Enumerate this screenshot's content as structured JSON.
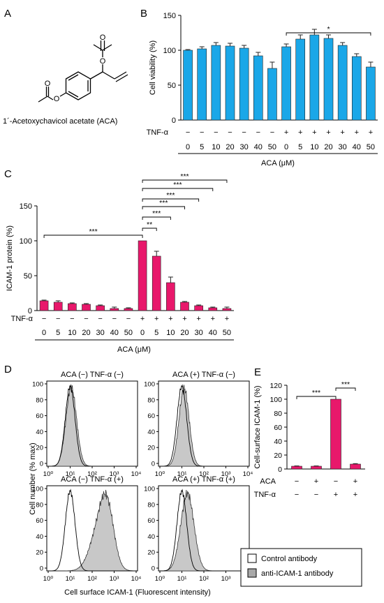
{
  "panels": {
    "a": {
      "letter": "A",
      "compound_label": "1´-Acetoxychavicol acetate (ACA)"
    },
    "b": {
      "letter": "B"
    },
    "c": {
      "letter": "C"
    },
    "d": {
      "letter": "D",
      "ylabel": "Cell number (% max)",
      "xlabel": "Cell surface ICAM-1 (Fluorescent intensity)",
      "subplot_titles": [
        "ACA (−) TNF-α (−)",
        "ACA (+) TNF-α (−)",
        "ACA (−) TNF-α (+)",
        "ACA (+) TNF-α (+)"
      ],
      "y_ticks": [
        "100",
        "80",
        "60",
        "40",
        "20",
        "0"
      ],
      "x_ticks": [
        "10⁰",
        "10¹",
        "10²",
        "10³",
        "10⁴"
      ],
      "legend": [
        "Control antibody",
        "anti-ICAM-1 antibody"
      ]
    },
    "e": {
      "letter": "E"
    }
  },
  "colors": {
    "blue_bar": "#1aa7e8",
    "magenta_bar": "#e8186b",
    "histogram_fill": "#c8c8c8"
  },
  "chart_data": [
    {
      "panel": "B",
      "type": "bar",
      "ylabel": "Cell viability (%)",
      "ylim": [
        0,
        150
      ],
      "yticks": [
        "0",
        "50",
        "100",
        "150"
      ],
      "categories": [
        "0",
        "5",
        "10",
        "20",
        "30",
        "40",
        "50",
        "0",
        "5",
        "10",
        "20",
        "30",
        "40",
        "50"
      ],
      "tnf": [
        "−",
        "−",
        "−",
        "−",
        "−",
        "−",
        "−",
        "+",
        "+",
        "+",
        "+",
        "+",
        "+",
        "+"
      ],
      "tnf_label": "TNF-α",
      "xlabel": "ACA (μM)",
      "values": [
        100,
        102,
        107,
        106,
        103,
        92,
        74,
        105,
        116,
        122,
        117,
        107,
        91,
        76
      ],
      "errors": [
        1,
        3,
        4,
        4,
        4,
        5,
        9,
        4,
        6,
        8,
        5,
        4,
        4,
        7
      ],
      "significance": [
        {
          "label": "*",
          "from": 7,
          "to": 13
        }
      ]
    },
    {
      "panel": "C",
      "type": "bar",
      "ylabel": "ICAM-1 protein (%)",
      "ylim": [
        0,
        150
      ],
      "yticks": [
        "0",
        "50",
        "100",
        "150"
      ],
      "categories": [
        "0",
        "5",
        "10",
        "20",
        "30",
        "40",
        "50",
        "0",
        "5",
        "10",
        "20",
        "30",
        "40",
        "50"
      ],
      "tnf": [
        "−",
        "−",
        "−",
        "−",
        "−",
        "−",
        "−",
        "+",
        "+",
        "+",
        "+",
        "+",
        "+",
        "+"
      ],
      "tnf_label": "TNF-α",
      "xlabel": "ACA (μM)",
      "values": [
        14,
        12,
        10,
        9,
        7,
        3,
        3,
        100,
        78,
        40,
        12,
        7,
        4,
        3
      ],
      "errors": [
        1,
        2,
        1,
        1,
        1,
        2,
        1,
        0,
        7,
        8,
        1,
        1,
        1,
        2
      ],
      "significance": [
        {
          "label": "***",
          "from": 0,
          "to": 7
        },
        {
          "label": "**",
          "from": 7,
          "to": 8
        },
        {
          "label": "***",
          "from": 7,
          "to": 9
        },
        {
          "label": "***",
          "from": 7,
          "to": 10
        },
        {
          "label": "***",
          "from": 7,
          "to": 11
        },
        {
          "label": "***",
          "from": 7,
          "to": 12
        },
        {
          "label": "***",
          "from": 7,
          "to": 13
        }
      ]
    },
    {
      "panel": "E",
      "type": "bar",
      "ylabel": "Cell-surface ICAM-1 (%)",
      "ylim": [
        0,
        120
      ],
      "yticks": [
        "0",
        "20",
        "40",
        "60",
        "80",
        "100",
        "120"
      ],
      "aca": [
        "−",
        "+",
        "−",
        "+"
      ],
      "tnf": [
        "−",
        "−",
        "+",
        "+"
      ],
      "aca_label": "ACA",
      "tnf_label": "TNF-α",
      "values": [
        4,
        4,
        100,
        7
      ],
      "errors": [
        0.4,
        0.4,
        0,
        0.7
      ],
      "significance": [
        {
          "label": "***",
          "from": 0,
          "to": 2
        },
        {
          "label": "***",
          "from": 2,
          "to": 3
        }
      ]
    }
  ]
}
